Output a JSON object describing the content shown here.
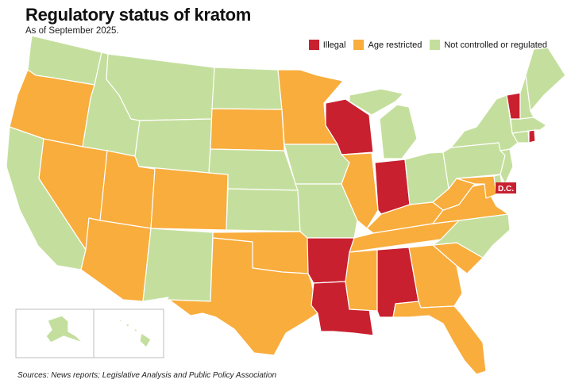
{
  "title": "Regulatory status of kratom",
  "subtitle": "As of September 2025.",
  "source": "Sources: News reports; Legislative Analysis and Public Policy Association",
  "colors": {
    "illegal": "#c8202f",
    "age_restricted": "#f8ad3d",
    "not_controlled": "#c4df9d"
  },
  "legend": [
    {
      "key": "illegal",
      "label": "Illegal"
    },
    {
      "key": "age_restricted",
      "label": "Age restricted"
    },
    {
      "key": "not_controlled",
      "label": "Not controlled or regulated"
    }
  ],
  "dc_label": "D.C.",
  "states": {
    "WA": "not_controlled",
    "OR": "age_restricted",
    "CA": "not_controlled",
    "ID": "not_controlled",
    "NV": "age_restricted",
    "AZ": "age_restricted",
    "UT": "age_restricted",
    "MT": "not_controlled",
    "WY": "not_controlled",
    "CO": "age_restricted",
    "NM": "not_controlled",
    "ND": "not_controlled",
    "SD": "age_restricted",
    "NE": "not_controlled",
    "KS": "not_controlled",
    "OK": "age_restricted",
    "TX": "age_restricted",
    "MN": "age_restricted",
    "IA": "not_controlled",
    "MO": "not_controlled",
    "AR": "illegal",
    "LA": "illegal",
    "WI": "illegal",
    "IL": "age_restricted",
    "MI": "not_controlled",
    "IN": "illegal",
    "OH": "not_controlled",
    "KY": "age_restricted",
    "TN": "age_restricted",
    "MS": "age_restricted",
    "AL": "illegal",
    "GA": "age_restricted",
    "FL": "age_restricted",
    "SC": "age_restricted",
    "NC": "not_controlled",
    "VA": "age_restricted",
    "WV": "age_restricted",
    "MD": "age_restricted",
    "DE": "not_controlled",
    "PA": "not_controlled",
    "NJ": "not_controlled",
    "NY": "not_controlled",
    "CT": "not_controlled",
    "RI": "illegal",
    "MA": "not_controlled",
    "VT": "illegal",
    "NH": "not_controlled",
    "ME": "not_controlled",
    "DC": "illegal",
    "AK": "not_controlled",
    "HI": "not_controlled"
  }
}
